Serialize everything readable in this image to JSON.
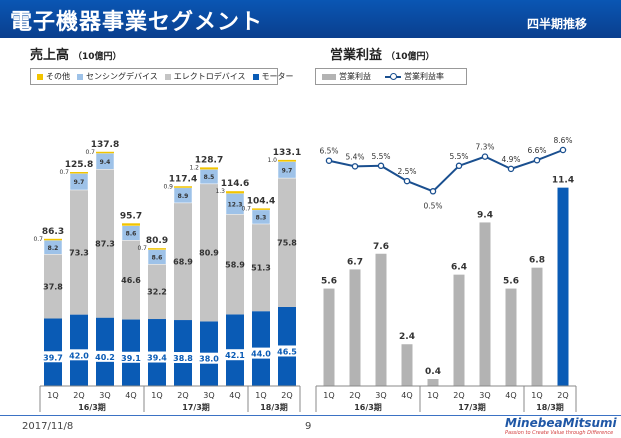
{
  "header": {
    "title": "電子機器事業セグメント",
    "badge": "四半期推移"
  },
  "sales": {
    "title": "売上高",
    "unit": "（10億円）",
    "legend": [
      {
        "label": "その他",
        "color": "#f2c400"
      },
      {
        "label": "センシングデバイス",
        "color": "#9ec2e8"
      },
      {
        "label": "エレクトロデバイス",
        "color": "#c4c4c4"
      },
      {
        "label": "モーター",
        "color": "#0a5bb5"
      }
    ]
  },
  "op": {
    "title": "営業利益",
    "unit": "（10億円）",
    "legend_bar": "営業利益",
    "legend_line": "営業利益率"
  },
  "footer": {
    "date": "2017/11/8",
    "page": "9",
    "logo": "MinebeaMitsumi",
    "tagline": "Passion to Create Value through Difference"
  },
  "chart_data": [
    {
      "type": "bar",
      "title": "売上高",
      "stacked": true,
      "categories": [
        "1Q",
        "2Q",
        "3Q",
        "4Q",
        "1Q",
        "2Q",
        "3Q",
        "4Q",
        "1Q",
        "2Q"
      ],
      "groups": [
        {
          "label": "16/3期",
          "count": 4
        },
        {
          "label": "17/3期",
          "count": 4
        },
        {
          "label": "18/3期",
          "count": 2
        }
      ],
      "series": [
        {
          "name": "モーター",
          "values": [
            39.7,
            42.0,
            40.2,
            39.1,
            39.4,
            38.8,
            38.0,
            42.1,
            44.0,
            46.5
          ]
        },
        {
          "name": "エレクトロデバイス",
          "values": [
            37.8,
            73.3,
            87.3,
            46.6,
            32.2,
            68.9,
            80.9,
            58.9,
            51.3,
            75.8
          ]
        },
        {
          "name": "センシングデバイス",
          "values": [
            8.2,
            9.7,
            9.4,
            8.6,
            8.6,
            8.9,
            8.5,
            12.3,
            8.3,
            9.7
          ]
        },
        {
          "name": "その他",
          "values": [
            0.7,
            0.7,
            0.7,
            1.4,
            0.7,
            0.9,
            1.2,
            1.3,
            0.7,
            1.0
          ]
        }
      ],
      "labels": {
        "motor": [
          "39.7",
          "42.0",
          "40.2",
          "39.1",
          "39.4",
          "38.8",
          "38.0",
          "42.1",
          "44.0",
          "46.5"
        ],
        "electro": [
          "37.8",
          "73.3",
          "87.3",
          "46.6",
          "32.2",
          "68.9",
          "80.9",
          "58.9",
          "51.3",
          "75.8"
        ],
        "sensing": [
          "8.2",
          "9.7",
          "9.4",
          "8.6",
          "8.6",
          "8.9",
          "8.5",
          "12.3",
          "8.3",
          "9.7"
        ],
        "other": [
          "0.7",
          "0.7",
          "0.7",
          "",
          "0.7",
          "0.9",
          "1.2",
          "1.3",
          "0.7",
          "1.0"
        ]
      },
      "totals": [
        86.3,
        125.8,
        137.8,
        95.7,
        80.9,
        117.4,
        128.7,
        114.6,
        104.4,
        133.1
      ],
      "total_labels": [
        "86.3",
        "125.8",
        "137.8",
        "95.7",
        "80.9",
        "117.4",
        "128.7",
        "114.6",
        "104.4",
        "133.1"
      ]
    },
    {
      "type": "bar+line",
      "title": "営業利益",
      "categories": [
        "1Q",
        "2Q",
        "3Q",
        "4Q",
        "1Q",
        "2Q",
        "3Q",
        "4Q",
        "1Q",
        "2Q"
      ],
      "groups": [
        {
          "label": "16/3期",
          "count": 4
        },
        {
          "label": "17/3期",
          "count": 4
        },
        {
          "label": "18/3期",
          "count": 2
        }
      ],
      "series": [
        {
          "name": "営業利益",
          "values": [
            5.6,
            6.7,
            7.6,
            2.4,
            0.4,
            6.4,
            9.4,
            5.6,
            6.8,
            11.4
          ],
          "colors": [
            "#b3b3b3",
            "#b3b3b3",
            "#b3b3b3",
            "#b3b3b3",
            "#b3b3b3",
            "#b3b3b3",
            "#b3b3b3",
            "#b3b3b3",
            "#b3b3b3",
            "#0a5bb5"
          ]
        },
        {
          "name": "営業利益率",
          "values": [
            6.5,
            5.4,
            5.5,
            2.5,
            0.5,
            5.5,
            7.3,
            4.9,
            6.6,
            8.6
          ],
          "unit": "%"
        }
      ],
      "bar_labels": [
        "5.6",
        "6.7",
        "7.6",
        "2.4",
        "0.4",
        "6.4",
        "9.4",
        "5.6",
        "6.8",
        "11.4"
      ],
      "rate_labels": [
        "6.5%",
        "5.4%",
        "5.5%",
        "2.5%",
        "0.5%",
        "5.5%",
        "7.3%",
        "4.9%",
        "6.6%",
        "8.6%"
      ]
    }
  ]
}
